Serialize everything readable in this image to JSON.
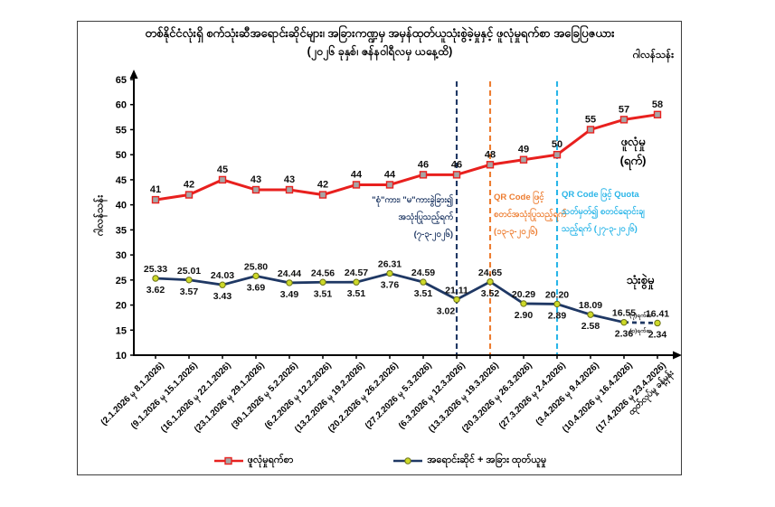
{
  "header": {
    "title_line1": "တစ်နိုင်ငံလုံးရှိ စက်သုံးဆီအရောင်းဆိုင်များ၊ အခြားကဏ္ဍမှ အမှန်ထုတ်ယူသုံးစွဲခဲ့မှုနှင့် ဖူလုံမှုရက်စာ အခြေပြဇယား",
    "title_line2": "(၂၀၂၆ ခုနှစ်၊ ဇန်နဝါရီလမှ ယနေ့ထိ)",
    "unit_right": "ဂါလန်သန်း",
    "unit_left": "ဂါလန်သန်း"
  },
  "series_labels": {
    "red_line1": "ဖူလုံမှု",
    "red_line2": "(ရက်)",
    "navy": "သုံးစွဲမှု"
  },
  "legend": {
    "items": [
      {
        "label": "ဖူလုံမှုရက်စာ",
        "color": "#e8201e",
        "marker": "square"
      },
      {
        "label": "အရောင်းဆိုင် + အခြား ထုတ်ယူမှု",
        "color": "#1f3864",
        "marker": "circle"
      }
    ]
  },
  "chart_data": {
    "type": "line",
    "title": "တစ်နိုင်ငံလုံးရှိ စက်သုံးဆီအရောင်းဆိုင်များ၊ အခြားကဏ္ဍမှ အမှန်ထုတ်ယူသုံးစွဲခဲ့မှုနှင့် ဖူလုံမှုရက်စာ အခြေပြဇယား",
    "subtitle": "(၂၀၂၆ ခုနှစ်၊ ဇန်နဝါရီလမှ ယနေ့ထိ)",
    "ylabel": "ဂါလန်သန်း",
    "ylim": [
      10,
      65
    ],
    "ytick_step": 5,
    "grid": false,
    "legend_position": "bottom",
    "categories": [
      "(2.1.2026 မှ 8.1.2026)",
      "(9.1.2026 မှ 15.1.2026)",
      "(16.1.2026 မှ 22.1.2026)",
      "(23.1.2026 မှ 29.1.2026)",
      "(30.1.2026 မှ 5.2.2026)",
      "(6.2.2026 မှ 12.2.2026)",
      "(13.2.2026 မှ 19.2.2026)",
      "(20.2.2026 မှ 26.2.2026)",
      "(27.2.2026 မှ 5.3.2026)",
      "(6.3.2026 မှ 12.3.2026)",
      "(13.3.2026 မှ 19.3.2026)",
      "(20.3.2026 မှ 26.3.2026)",
      "(27.3.2026 မှ 2.4.2026)",
      "(3.4.2026 မှ 9.4.2026)",
      "(10.4.2026 မှ 16.4.2026)",
      "(17.4.2026 မှ 23.4.2026)"
    ],
    "last_category_note": "ထုတ်လုပ်မှု ခန့်မှန်း",
    "series": [
      {
        "name": "ဖူလုံမှုရက်စာ",
        "chart_label": "ဖူလုံမှု (ရက်)",
        "color": "#e8201e",
        "marker": "square",
        "values": [
          41,
          42,
          45,
          43,
          43,
          42,
          44,
          44,
          46,
          46,
          48,
          49,
          50,
          55,
          57,
          58
        ]
      },
      {
        "name": "အရောင်းဆိုင် + အခြား ထုတ်ယူမှု",
        "chart_label": "သုံးစွဲမှု",
        "color": "#1f3864",
        "marker": "circle",
        "values": [
          25.33,
          25.01,
          24.03,
          25.8,
          24.44,
          24.56,
          24.57,
          26.31,
          24.59,
          21.11,
          24.65,
          20.29,
          20.2,
          18.09,
          16.55,
          16.41
        ],
        "sub_values": [
          3.62,
          3.57,
          3.43,
          3.69,
          3.49,
          3.51,
          3.51,
          3.76,
          3.51,
          3.02,
          3.52,
          2.9,
          2.89,
          2.58,
          2.36,
          2.34
        ],
        "forecast_last_segment": true,
        "forecast_label_above": "(၇)ရက်စာ",
        "forecast_label_below": "(၁)ရက်စာ"
      }
    ],
    "event_lines": [
      {
        "at_category_index": 9,
        "color": "#1f3864",
        "side": "left",
        "text_lines": [
          "\"စုံ\"ကား၊ \"မ\"ကားခွဲခြား၍",
          "အသုံးပြုသည့်ရက်",
          "(၇-၃-၂၀၂၆)"
        ]
      },
      {
        "at_category_index": 10,
        "color": "#ed7d31",
        "side": "right",
        "text_lines": [
          "QR Code ဖြင့်",
          "စတင်အသုံးပြုသည့်ရက်",
          "(၁၃-၃-၂၀၂၆)"
        ]
      },
      {
        "at_category_index": 12,
        "color": "#29b5e8",
        "side": "right",
        "text_lines": [
          "QR Code ဖြင့် Quota",
          "သတ်မှတ်၍ စတင်ရောင်းချ",
          "သည့်ရက် (၂၇-၃-၂၀၂၆)"
        ]
      }
    ]
  }
}
